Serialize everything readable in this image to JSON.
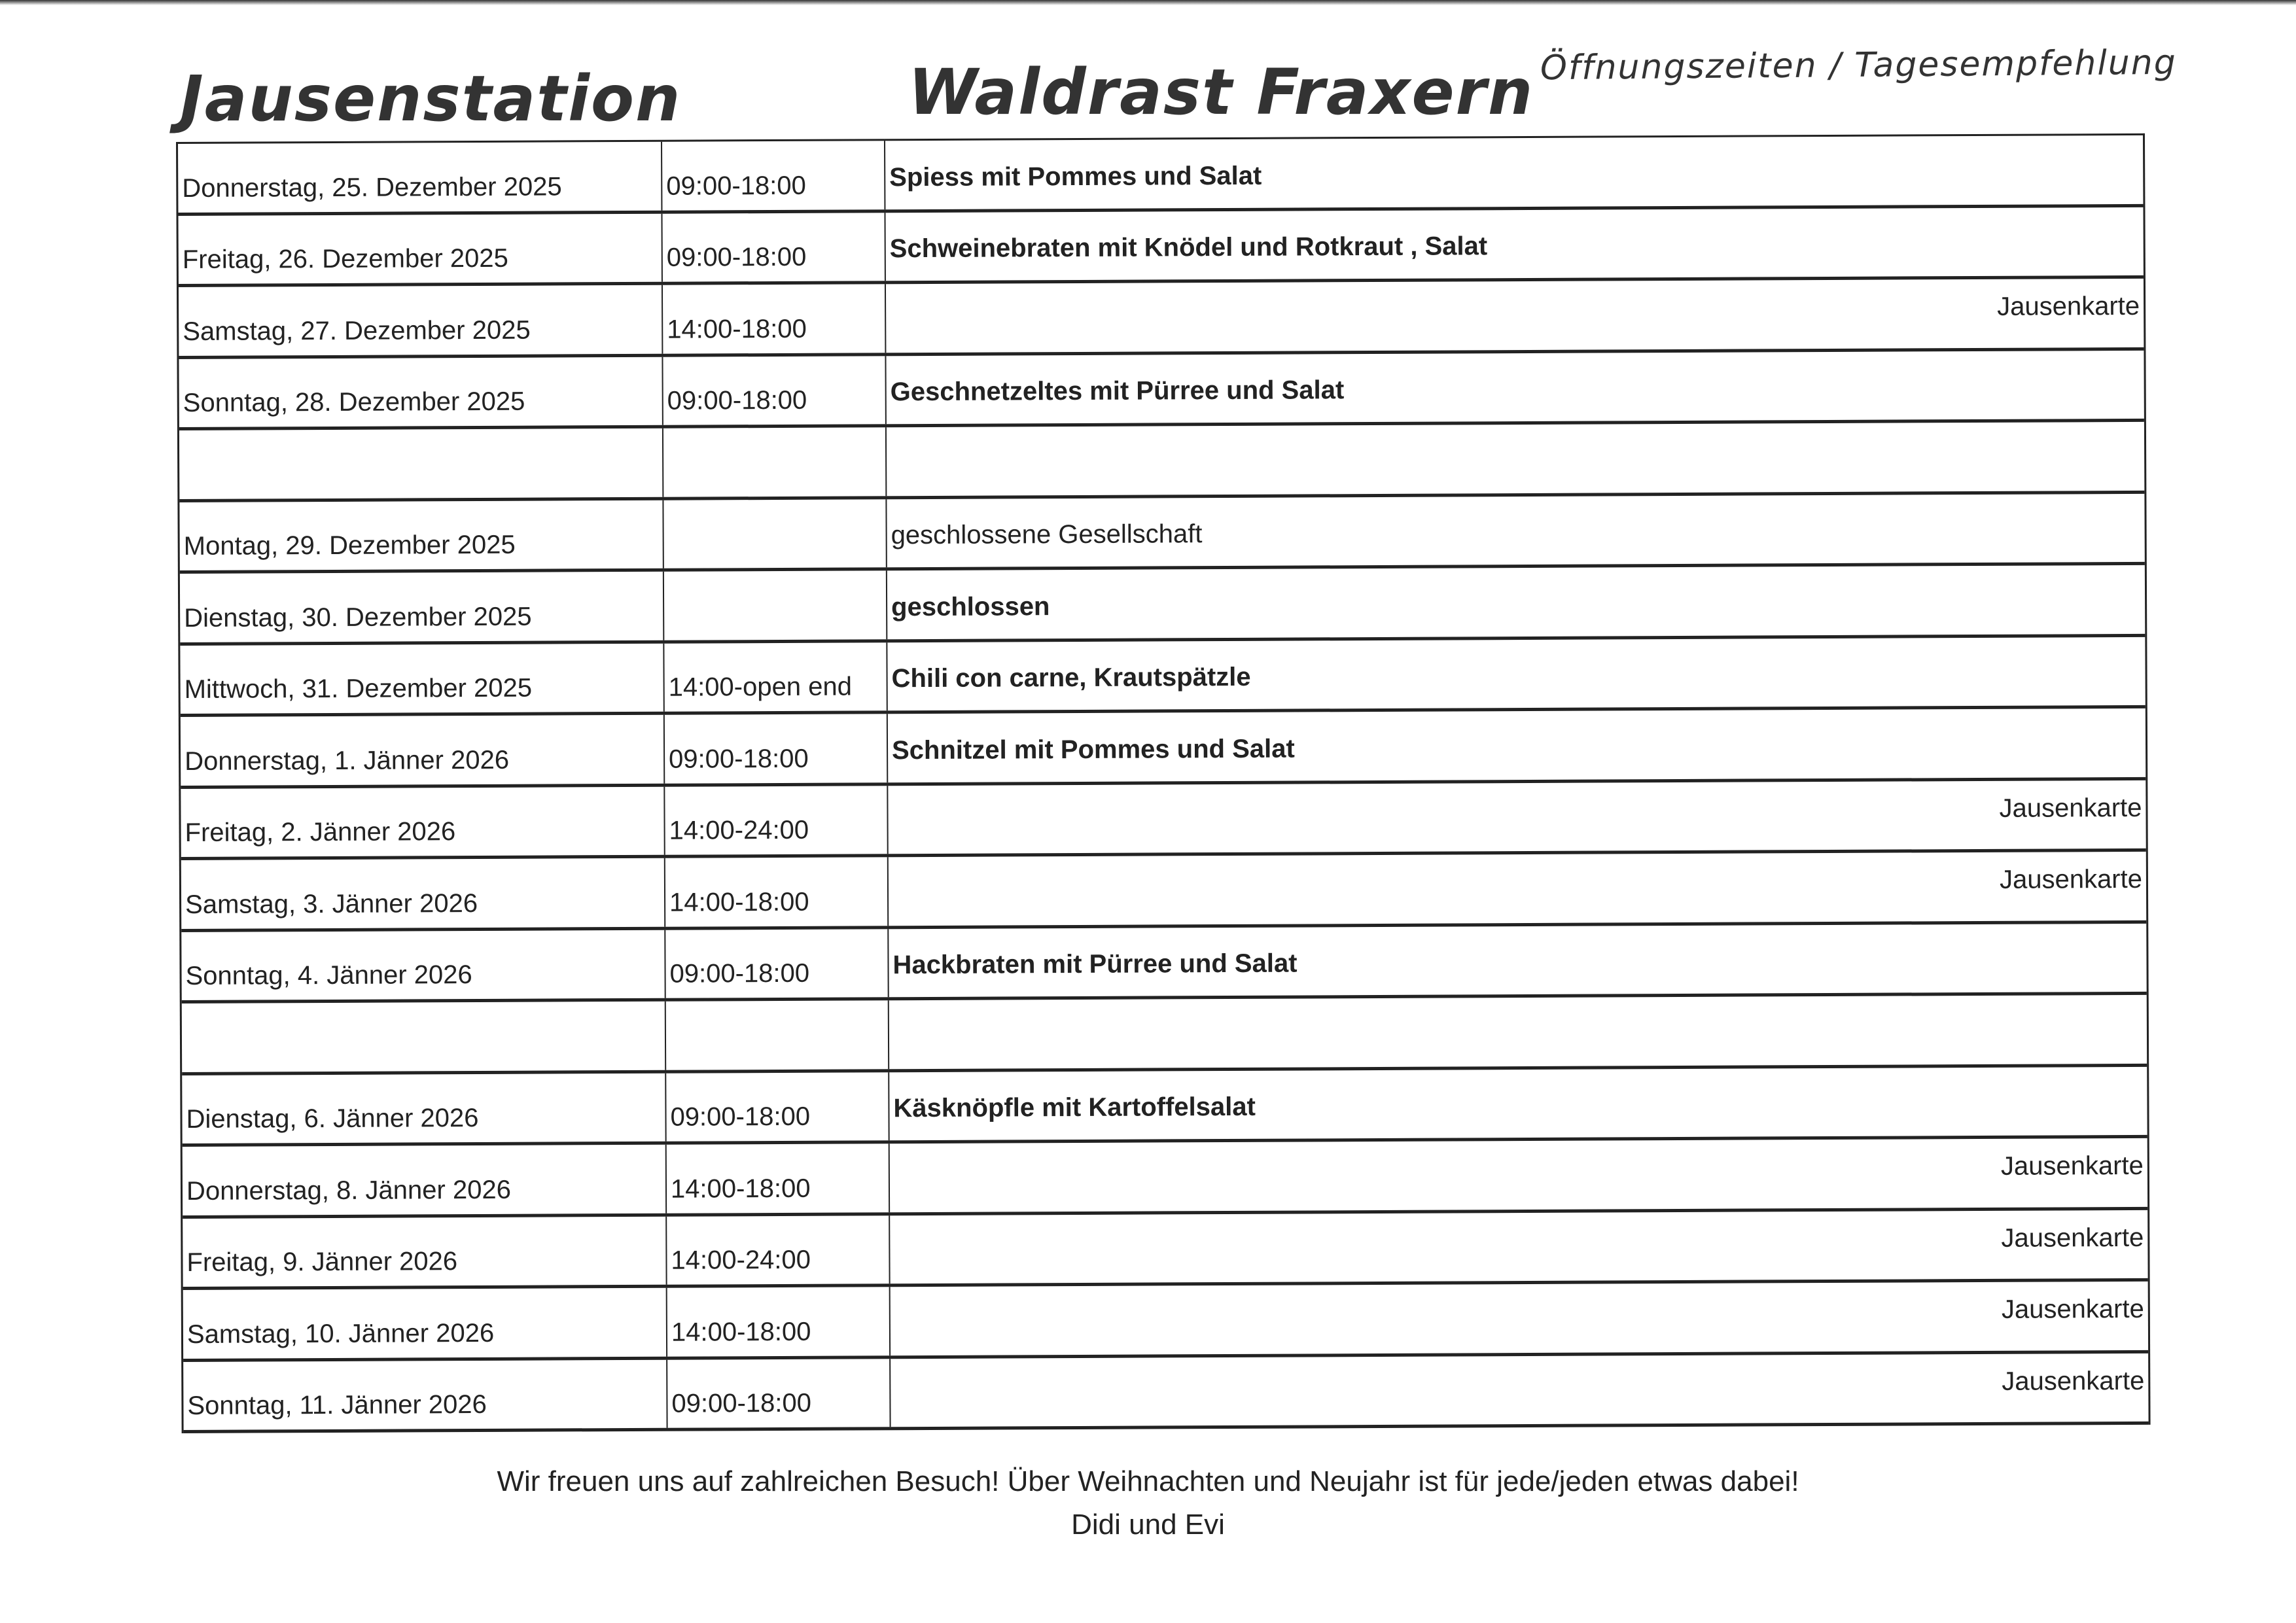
{
  "header": {
    "title_left": "Jausenstation",
    "title_center": "Waldrast Fraxern",
    "subtitle": "Öffnungszeiten / Tagesempfehlung"
  },
  "rows": [
    {
      "date": "Donnerstag, 25. Dezember 2025",
      "time": "09:00-18:00",
      "dish": "Spiess mit Pommes und Salat",
      "bold": true,
      "note": ""
    },
    {
      "date": "Freitag, 26. Dezember 2025",
      "time": "09:00-18:00",
      "dish": "Schweinebraten mit Knödel und Rotkraut , Salat",
      "bold": true,
      "note": ""
    },
    {
      "date": "Samstag, 27. Dezember 2025",
      "time": "14:00-18:00",
      "dish": "",
      "bold": false,
      "note": "Jausenkarte"
    },
    {
      "date": "Sonntag, 28. Dezember 2025",
      "time": "09:00-18:00",
      "dish": "Geschnetzeltes mit Pürree und Salat",
      "bold": true,
      "note": ""
    },
    {
      "date": "",
      "time": "",
      "dish": "",
      "bold": false,
      "note": ""
    },
    {
      "date": "Montag, 29. Dezember 2025",
      "time": "",
      "dish": "geschlossene Gesellschaft",
      "bold": false,
      "note": ""
    },
    {
      "date": "Dienstag, 30. Dezember 2025",
      "time": "",
      "dish": "geschlossen",
      "bold": true,
      "note": ""
    },
    {
      "date": "Mittwoch, 31. Dezember 2025",
      "time": "14:00-open end",
      "dish": "Chili con carne, Krautspätzle",
      "bold": true,
      "note": ""
    },
    {
      "date": "Donnerstag, 1. Jänner 2026",
      "time": "09:00-18:00",
      "dish": "Schnitzel mit Pommes und Salat",
      "bold": true,
      "note": ""
    },
    {
      "date": "Freitag, 2. Jänner 2026",
      "time": "14:00-24:00",
      "dish": "",
      "bold": false,
      "note": "Jausenkarte"
    },
    {
      "date": "Samstag, 3. Jänner 2026",
      "time": "14:00-18:00",
      "dish": "",
      "bold": false,
      "note": "Jausenkarte"
    },
    {
      "date": "Sonntag, 4. Jänner 2026",
      "time": "09:00-18:00",
      "dish": "Hackbraten mit Pürree und Salat",
      "bold": true,
      "note": ""
    },
    {
      "date": "",
      "time": "",
      "dish": "",
      "bold": false,
      "note": ""
    },
    {
      "date": "Dienstag, 6. Jänner 2026",
      "time": "09:00-18:00",
      "dish": "Käsknöpfle mit Kartoffelsalat",
      "bold": true,
      "note": ""
    },
    {
      "date": "Donnerstag, 8. Jänner 2026",
      "time": "14:00-18:00",
      "dish": "",
      "bold": false,
      "note": "Jausenkarte"
    },
    {
      "date": "Freitag, 9. Jänner 2026",
      "time": "14:00-24:00",
      "dish": "",
      "bold": false,
      "note": "Jausenkarte"
    },
    {
      "date": "Samstag, 10. Jänner 2026",
      "time": "14:00-18:00",
      "dish": "",
      "bold": false,
      "note": "Jausenkarte"
    },
    {
      "date": "Sonntag, 11. Jänner 2026",
      "time": "09:00-18:00",
      "dish": "",
      "bold": false,
      "note": "Jausenkarte"
    }
  ],
  "footer": {
    "message": "Wir freuen uns auf zahlreichen Besuch! Über Weihnachten und Neujahr ist für jede/jeden etwas dabei!",
    "signature": "Didi und Evi"
  }
}
